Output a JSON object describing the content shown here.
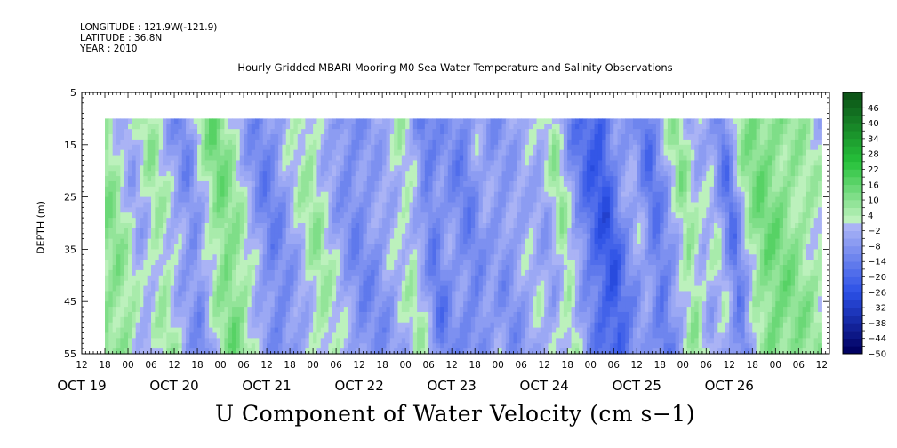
{
  "header": {
    "longitude": "LONGITUDE : 121.9W(-121.9)",
    "latitude": "LATITUDE : 36.8N",
    "year": "YEAR : 2010"
  },
  "chart_data": {
    "type": "heatmap",
    "title": "Hourly Gridded MBARI Mooring M0 Sea Water Temperature and Salinity Observations",
    "xlabel": "U Component of Water Velocity (cm s−1)",
    "ylabel": "DEPTH (m)",
    "ylim": [
      55,
      5
    ],
    "data_depth_range": [
      10,
      55
    ],
    "data_time_range_hours": [
      18,
      204
    ],
    "xlim_hours": [
      12,
      206
    ],
    "y_ticks": [
      5,
      15,
      25,
      35,
      45,
      55
    ],
    "x_hour_labels": [
      "12",
      "18",
      "00",
      "06",
      "12",
      "18",
      "00",
      "06",
      "12",
      "18",
      "00",
      "06",
      "12",
      "18",
      "00",
      "06",
      "12",
      "18",
      "00",
      "06",
      "12",
      "18",
      "00",
      "06",
      "12",
      "18",
      "00",
      "06",
      "12",
      "18",
      "00",
      "06",
      "12"
    ],
    "x_date_labels": [
      {
        "label": "OCT 19",
        "hour": 12
      },
      {
        "label": "OCT 20",
        "hour": 36
      },
      {
        "label": "OCT 21",
        "hour": 60
      },
      {
        "label": "OCT 22",
        "hour": 84
      },
      {
        "label": "OCT 23",
        "hour": 108
      },
      {
        "label": "OCT 24",
        "hour": 132
      },
      {
        "label": "OCT 25",
        "hour": 156
      },
      {
        "label": "OCT 26",
        "hour": 180
      }
    ],
    "colorbar_labels": [
      "46",
      "40",
      "34",
      "28",
      "22",
      "16",
      "10",
      "4",
      "−2",
      "−8",
      "−14",
      "−20",
      "−26",
      "−32",
      "−38",
      "−44",
      "−50"
    ],
    "colorbar_range": [
      -50,
      52
    ],
    "colorbar_step": 3,
    "colors": {
      "neg_deep": "#000060",
      "neg_mid": "#2b50e6",
      "neg_light": "#b6bdf7",
      "pos_light": "#bff2bf",
      "pos_mid": "#25c23a",
      "pos_deep": "#0a4a14"
    },
    "time_profile": [
      {
        "hour": 18,
        "value": 8
      },
      {
        "hour": 21,
        "value": 1
      },
      {
        "hour": 24,
        "value": -5
      },
      {
        "hour": 29,
        "value": 6
      },
      {
        "hour": 33,
        "value": -3
      },
      {
        "hour": 38,
        "value": -12
      },
      {
        "hour": 42,
        "value": 2
      },
      {
        "hour": 46,
        "value": 12
      },
      {
        "hour": 50,
        "value": 5
      },
      {
        "hour": 54,
        "value": -6
      },
      {
        "hour": 58,
        "value": -14
      },
      {
        "hour": 61,
        "value": -10
      },
      {
        "hour": 64,
        "value": -4
      },
      {
        "hour": 70,
        "value": 6
      },
      {
        "hour": 74,
        "value": -2
      },
      {
        "hour": 80,
        "value": -12
      },
      {
        "hour": 86,
        "value": -8
      },
      {
        "hour": 90,
        "value": -3
      },
      {
        "hour": 94,
        "value": 3
      },
      {
        "hour": 97,
        "value": -4
      },
      {
        "hour": 100,
        "value": -16
      },
      {
        "hour": 104,
        "value": -8
      },
      {
        "hour": 110,
        "value": -14
      },
      {
        "hour": 114,
        "value": -5
      },
      {
        "hour": 118,
        "value": -10
      },
      {
        "hour": 122,
        "value": -6
      },
      {
        "hour": 126,
        "value": -2
      },
      {
        "hour": 130,
        "value": -6
      },
      {
        "hour": 134,
        "value": 6
      },
      {
        "hour": 138,
        "value": -10
      },
      {
        "hour": 142,
        "value": -20
      },
      {
        "hour": 146,
        "value": -25
      },
      {
        "hour": 150,
        "value": -10
      },
      {
        "hour": 154,
        "value": -4
      },
      {
        "hour": 158,
        "value": -18
      },
      {
        "hour": 162,
        "value": -6
      },
      {
        "hour": 166,
        "value": 8
      },
      {
        "hour": 170,
        "value": -4
      },
      {
        "hour": 174,
        "value": 0
      },
      {
        "hour": 178,
        "value": -18
      },
      {
        "hour": 182,
        "value": 4
      },
      {
        "hour": 186,
        "value": 12
      },
      {
        "hour": 190,
        "value": 10
      },
      {
        "hour": 196,
        "value": 6
      },
      {
        "hour": 200,
        "value": 3
      },
      {
        "hour": 204,
        "value": -2
      }
    ]
  }
}
